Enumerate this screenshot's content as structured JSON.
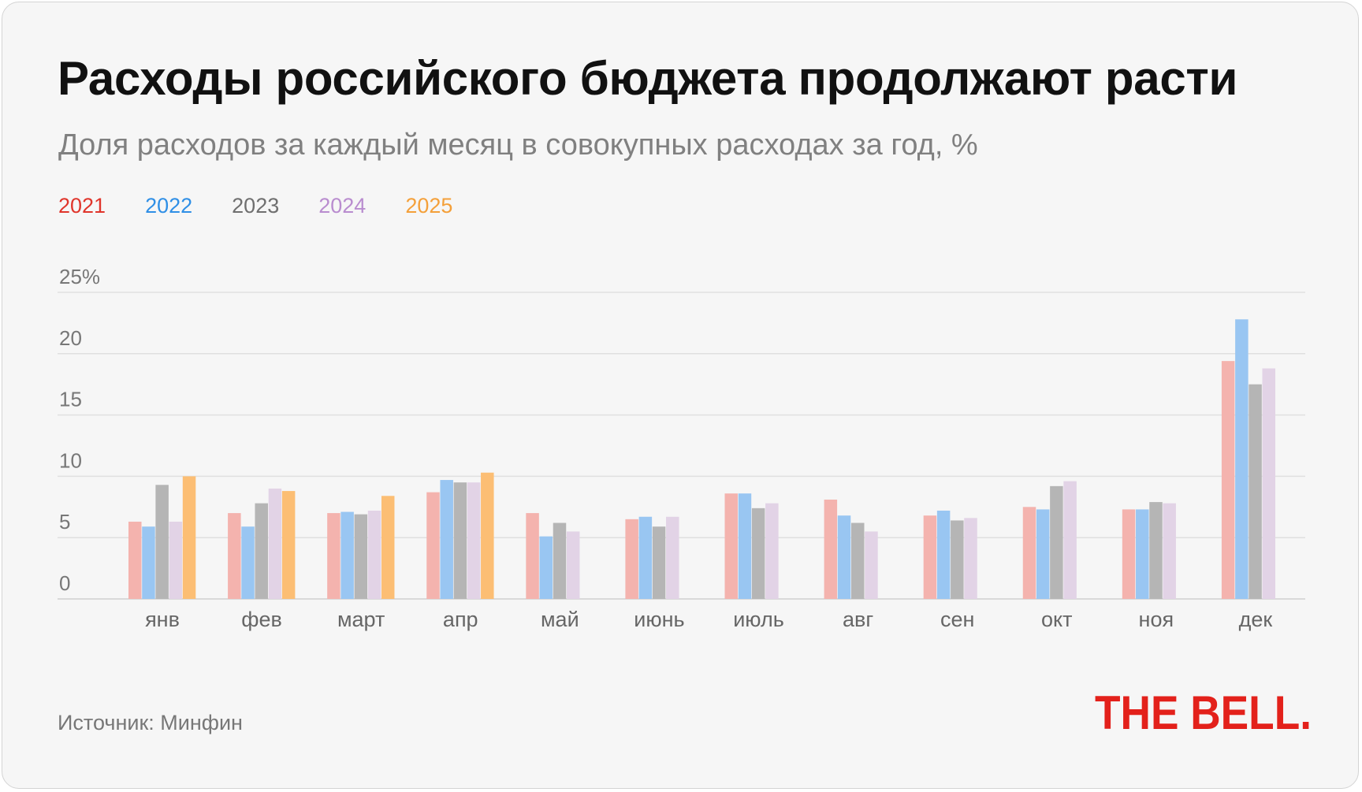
{
  "title": "Расходы российского бюджета продолжают расти",
  "subtitle": "Доля расходов за каждый месяц в совокупных расходах за год, %",
  "source": "Источник: Минфин",
  "logo_text": "THE BELL.",
  "colors": {
    "text_2021": "#e0352b",
    "text_2022": "#2f8fe6",
    "text_2023": "#6f6f6f",
    "text_2024": "#b98ccf",
    "text_2025": "#f4a03a",
    "logo": "#e3211b"
  },
  "chart_data": {
    "type": "bar",
    "categories": [
      "янв",
      "фев",
      "март",
      "апр",
      "май",
      "июнь",
      "июль",
      "авг",
      "сен",
      "окт",
      "ноя",
      "дек"
    ],
    "y_tick_labels": [
      "0",
      "5",
      "10",
      "15",
      "20",
      "25%"
    ],
    "ylim": [
      0,
      25
    ],
    "grid": true,
    "legend_position": "top-left",
    "series": [
      {
        "name": "2021",
        "color": "#f4b3ae",
        "values": [
          6.3,
          7.0,
          7.0,
          8.7,
          7.0,
          6.5,
          8.6,
          8.1,
          6.8,
          7.5,
          7.3,
          19.4
        ]
      },
      {
        "name": "2022",
        "color": "#99c6f2",
        "values": [
          5.9,
          5.9,
          7.1,
          9.7,
          5.1,
          6.7,
          8.6,
          6.8,
          7.2,
          7.3,
          7.3,
          22.8
        ]
      },
      {
        "name": "2023",
        "color": "#b5b5b5",
        "values": [
          9.3,
          7.8,
          6.9,
          9.5,
          6.2,
          5.9,
          7.4,
          6.2,
          6.4,
          9.2,
          7.9,
          17.5
        ]
      },
      {
        "name": "2024",
        "color": "#e2d3e6",
        "values": [
          6.3,
          9.0,
          7.2,
          9.5,
          5.5,
          6.7,
          7.8,
          5.5,
          6.6,
          9.6,
          7.8,
          18.8
        ]
      },
      {
        "name": "2025",
        "color": "#fcbe74",
        "values": [
          10.0,
          8.8,
          8.4,
          10.3,
          null,
          null,
          null,
          null,
          null,
          null,
          null,
          null
        ]
      }
    ]
  }
}
